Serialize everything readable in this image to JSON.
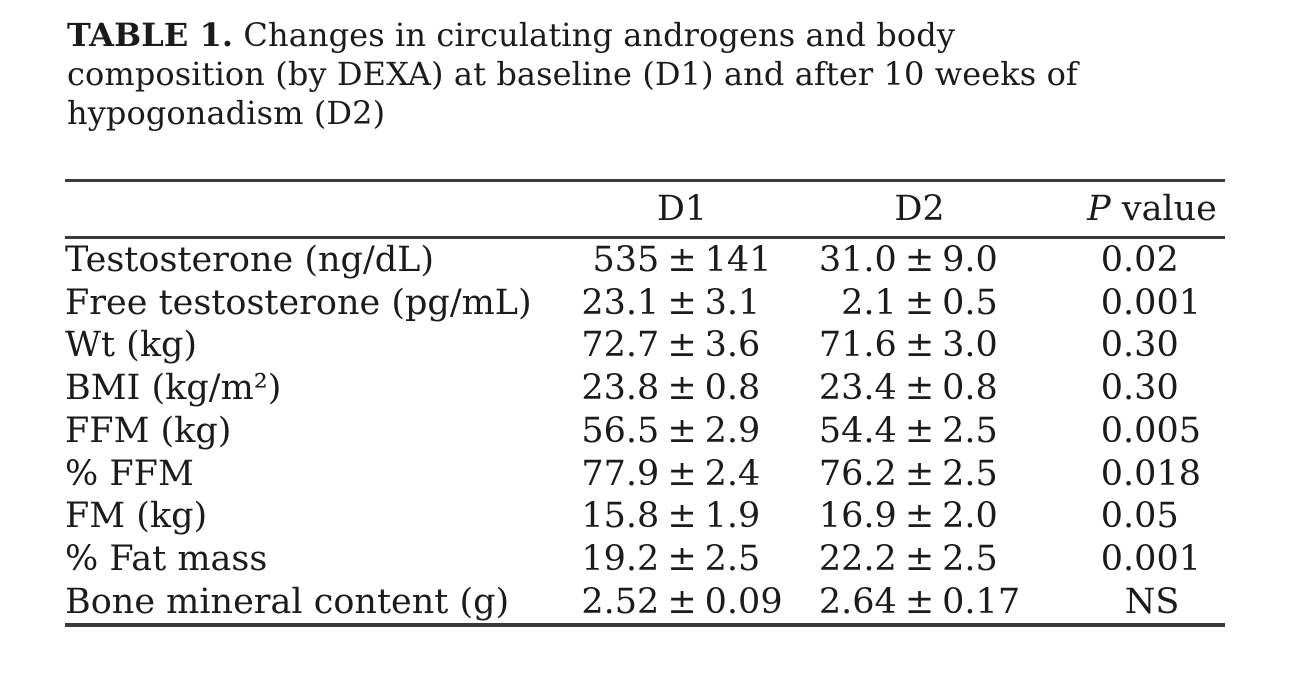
{
  "page": {
    "background": "#ffffff",
    "text_color": "#1b1b1b",
    "rule_color": "#3a3a3a"
  },
  "caption": {
    "label": "TABLE 1.",
    "line1_rest": "Changes in circulating androgens and body",
    "line2": "composition (by DEXA) at baseline (D1) and after 10 weeks of",
    "line3": "hypogonadism (D2)"
  },
  "table": {
    "pm": "±",
    "headers": {
      "parameter": "",
      "d1": "D1",
      "d2": "D2",
      "p_italic": "P",
      "p_rest": " value"
    },
    "rows": [
      {
        "label": "Testosterone (ng/dL)",
        "d1_mean": "535",
        "d1_sd": "141",
        "d2_mean": "31.0",
        "d2_sd": "9.0",
        "p": "0.02"
      },
      {
        "label": "Free testosterone (pg/mL)",
        "d1_mean": "23.1",
        "d1_sd": "3.1",
        "d2_mean": "2.1",
        "d2_sd": "0.5",
        "p": "0.001"
      },
      {
        "label": "Wt (kg)",
        "d1_mean": "72.7",
        "d1_sd": "3.6",
        "d2_mean": "71.6",
        "d2_sd": "3.0",
        "p": "0.30"
      },
      {
        "label": "BMI (kg/m²)",
        "d1_mean": "23.8",
        "d1_sd": "0.8",
        "d2_mean": "23.4",
        "d2_sd": "0.8",
        "p": "0.30"
      },
      {
        "label": "FFM (kg)",
        "d1_mean": "56.5",
        "d1_sd": "2.9",
        "d2_mean": "54.4",
        "d2_sd": "2.5",
        "p": "0.005"
      },
      {
        "label": "% FFM",
        "d1_mean": "77.9",
        "d1_sd": "2.4",
        "d2_mean": "76.2",
        "d2_sd": "2.5",
        "p": "0.018"
      },
      {
        "label": "FM (kg)",
        "d1_mean": "15.8",
        "d1_sd": "1.9",
        "d2_mean": "16.9",
        "d2_sd": "2.0",
        "p": "0.05"
      },
      {
        "label": "% Fat mass",
        "d1_mean": "19.2",
        "d1_sd": "2.5",
        "d2_mean": "22.2",
        "d2_sd": "2.5",
        "p": "0.001"
      },
      {
        "label": "Bone mineral content (g)",
        "d1_mean": "2.52",
        "d1_sd": "0.09",
        "d2_mean": "2.64",
        "d2_sd": "0.17",
        "p": "NS"
      }
    ]
  }
}
